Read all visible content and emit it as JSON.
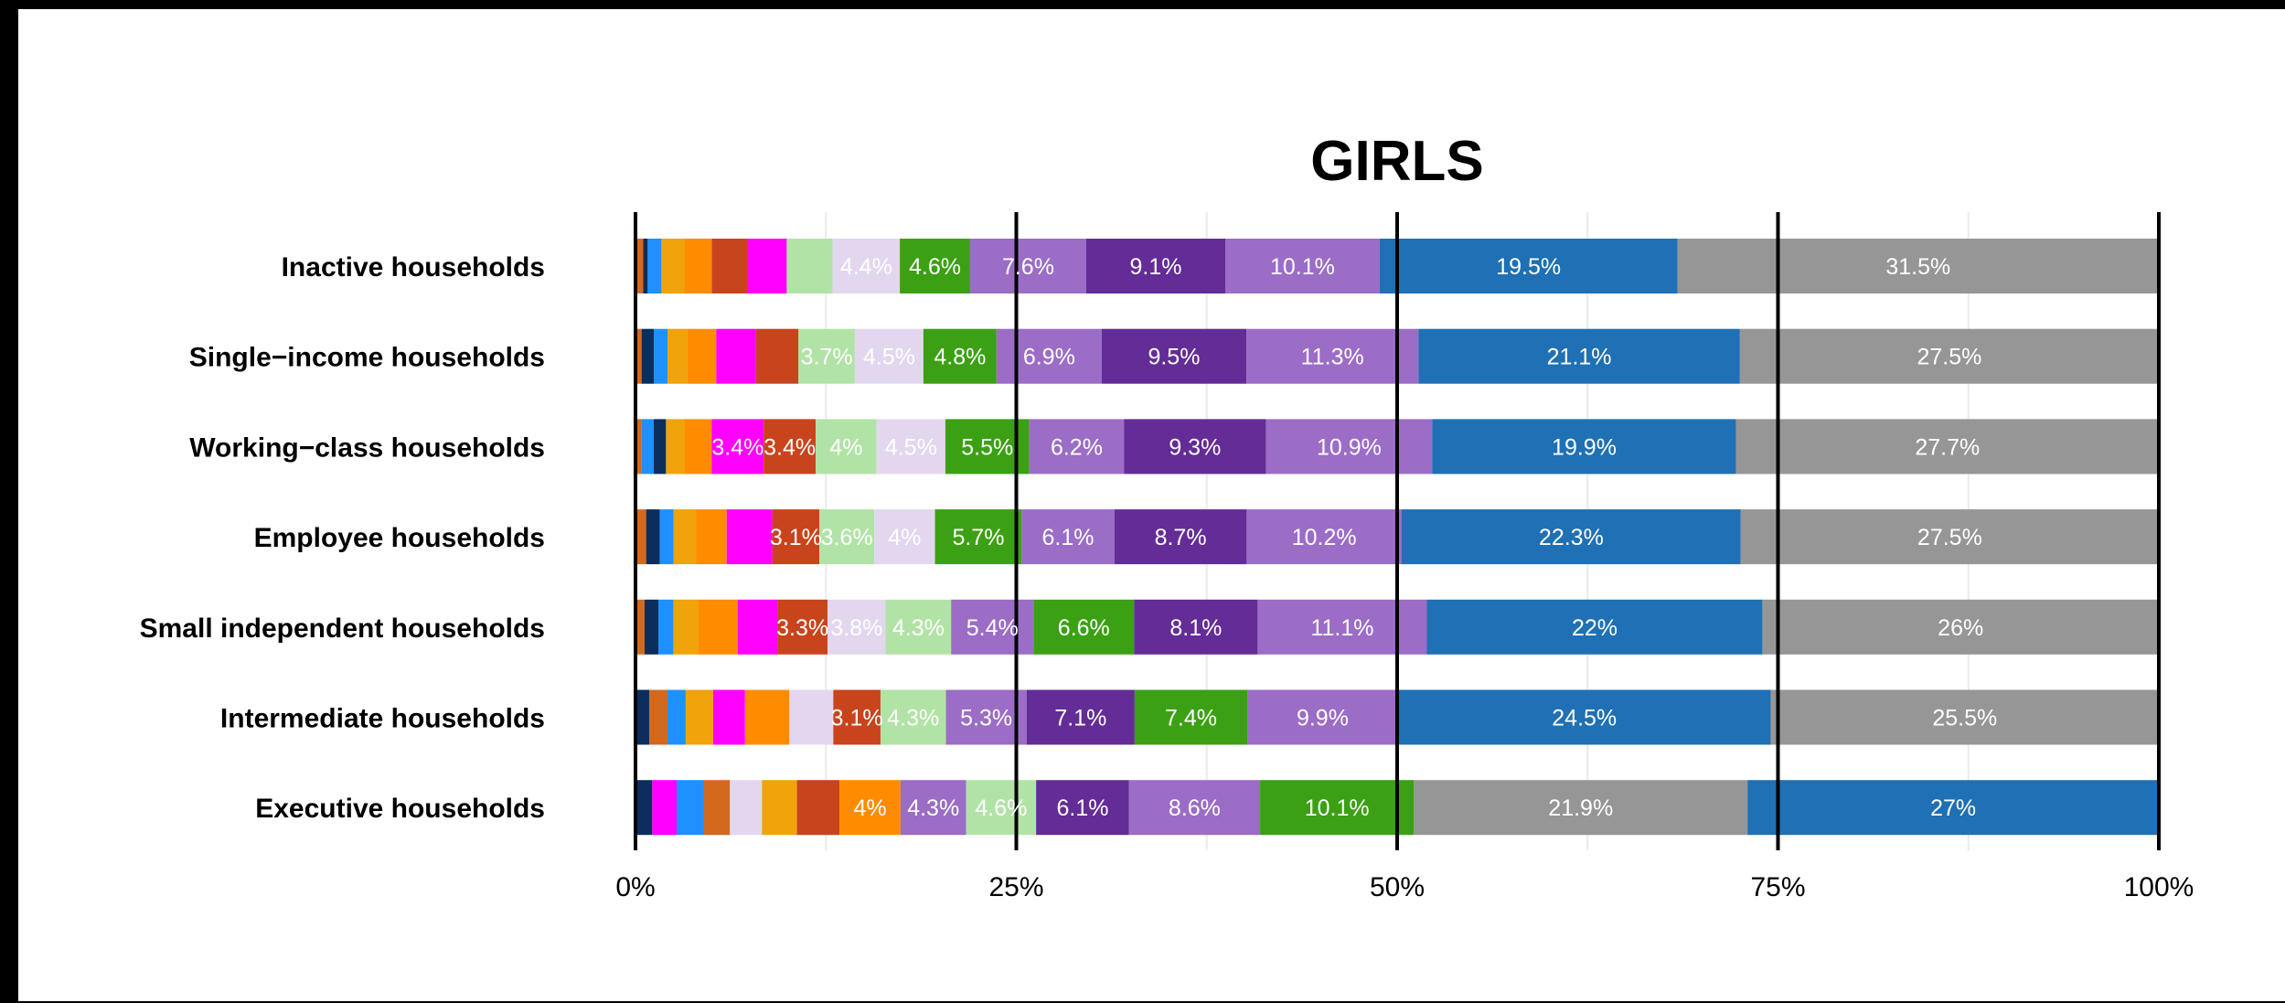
{
  "chart_data": {
    "type": "bar",
    "orientation": "horizontal",
    "stacked": "percent",
    "title": "GIRLS",
    "xlim": [
      0,
      100
    ],
    "x_ticks": [
      "0%",
      "25%",
      "50%",
      "75%",
      "100%"
    ],
    "grid": true,
    "legend": "none",
    "categories": [
      "Inactive households",
      "Single−income households",
      "Working−class households",
      "Employee households",
      "Small independent households",
      "Intermediate households",
      "Executive households"
    ],
    "rows": [
      {
        "segments": [
          {
            "v": 0.5,
            "c": "#D2691E"
          },
          {
            "v": 0.3,
            "c": "#0B2E5E"
          },
          {
            "v": 0.9,
            "c": "#1E90FF"
          },
          {
            "v": 1.5,
            "c": "#F0A30A"
          },
          {
            "v": 1.8,
            "c": "#FF8C00"
          },
          {
            "v": 2.3,
            "c": "#C8441C"
          },
          {
            "v": 2.6,
            "c": "#FF00FF"
          },
          {
            "v": 3.0,
            "c": "#B2E3A6"
          },
          {
            "v": 4.4,
            "c": "#E3D7F0",
            "label": "4.4%"
          },
          {
            "v": 4.6,
            "c": "#3CA014",
            "label": "4.6%"
          },
          {
            "v": 7.6,
            "c": "#9B6DC6",
            "label": "7.6%"
          },
          {
            "v": 9.1,
            "c": "#642C96",
            "label": "9.1%"
          },
          {
            "v": 10.1,
            "c": "#9B6DC6",
            "label": "10.1%"
          },
          {
            "v": 19.5,
            "c": "#1F70B4",
            "label": "19.5%"
          },
          {
            "v": 31.5,
            "c": "#969696",
            "label": "31.5%"
          }
        ]
      },
      {
        "segments": [
          {
            "v": 0.4,
            "c": "#D2691E"
          },
          {
            "v": 0.8,
            "c": "#0B2E5E"
          },
          {
            "v": 0.9,
            "c": "#1E90FF"
          },
          {
            "v": 1.3,
            "c": "#F0A30A"
          },
          {
            "v": 1.9,
            "c": "#FF8C00"
          },
          {
            "v": 2.6,
            "c": "#FF00FF"
          },
          {
            "v": 2.8,
            "c": "#C8441C"
          },
          {
            "v": 3.7,
            "c": "#B2E3A6",
            "label": "3.7%"
          },
          {
            "v": 4.5,
            "c": "#E3D7F0",
            "label": "4.5%"
          },
          {
            "v": 4.8,
            "c": "#3CA014",
            "label": "4.8%"
          },
          {
            "v": 6.9,
            "c": "#9B6DC6",
            "label": "6.9%"
          },
          {
            "v": 9.5,
            "c": "#642C96",
            "label": "9.5%"
          },
          {
            "v": 11.3,
            "c": "#9B6DC6",
            "label": "11.3%"
          },
          {
            "v": 21.1,
            "c": "#1F70B4",
            "label": "21.1%"
          },
          {
            "v": 27.5,
            "c": "#969696",
            "label": "27.5%"
          }
        ]
      },
      {
        "segments": [
          {
            "v": 0.4,
            "c": "#D2691E"
          },
          {
            "v": 0.8,
            "c": "#1E90FF"
          },
          {
            "v": 0.8,
            "c": "#0B2E5E"
          },
          {
            "v": 1.2,
            "c": "#F0A30A"
          },
          {
            "v": 1.8,
            "c": "#FF8C00"
          },
          {
            "v": 3.4,
            "c": "#FF00FF",
            "label": "3.4%"
          },
          {
            "v": 3.4,
            "c": "#C8441C",
            "label": "3.4%"
          },
          {
            "v": 4.0,
            "c": "#B2E3A6",
            "label": "4%"
          },
          {
            "v": 4.5,
            "c": "#E3D7F0",
            "label": "4.5%"
          },
          {
            "v": 5.5,
            "c": "#3CA014",
            "label": "5.5%"
          },
          {
            "v": 6.2,
            "c": "#9B6DC6",
            "label": "6.2%"
          },
          {
            "v": 9.3,
            "c": "#642C96",
            "label": "9.3%"
          },
          {
            "v": 10.9,
            "c": "#9B6DC6",
            "label": "10.9%"
          },
          {
            "v": 19.9,
            "c": "#1F70B4",
            "label": "19.9%"
          },
          {
            "v": 27.7,
            "c": "#969696",
            "label": "27.7%"
          }
        ]
      },
      {
        "segments": [
          {
            "v": 0.7,
            "c": "#D2691E"
          },
          {
            "v": 0.9,
            "c": "#0B2E5E"
          },
          {
            "v": 0.9,
            "c": "#1E90FF"
          },
          {
            "v": 1.5,
            "c": "#F0A30A"
          },
          {
            "v": 2.0,
            "c": "#FF8C00"
          },
          {
            "v": 3.0,
            "c": "#FF00FF"
          },
          {
            "v": 3.1,
            "c": "#C8441C",
            "label": "3.1%"
          },
          {
            "v": 3.6,
            "c": "#B2E3A6",
            "label": "3.6%"
          },
          {
            "v": 4.0,
            "c": "#E3D7F0",
            "label": "4%"
          },
          {
            "v": 5.7,
            "c": "#3CA014",
            "label": "5.7%"
          },
          {
            "v": 6.1,
            "c": "#9B6DC6",
            "label": "6.1%"
          },
          {
            "v": 8.7,
            "c": "#642C96",
            "label": "8.7%"
          },
          {
            "v": 10.2,
            "c": "#9B6DC6",
            "label": "10.2%"
          },
          {
            "v": 22.3,
            "c": "#1F70B4",
            "label": "22.3%"
          },
          {
            "v": 27.5,
            "c": "#969696",
            "label": "27.5%"
          }
        ]
      },
      {
        "segments": [
          {
            "v": 0.6,
            "c": "#D2691E"
          },
          {
            "v": 0.9,
            "c": "#0B2E5E"
          },
          {
            "v": 1.0,
            "c": "#1E90FF"
          },
          {
            "v": 1.6,
            "c": "#F0A30A"
          },
          {
            "v": 2.6,
            "c": "#FF8C00"
          },
          {
            "v": 2.6,
            "c": "#FF00FF"
          },
          {
            "v": 3.3,
            "c": "#C8441C",
            "label": "3.3%"
          },
          {
            "v": 3.8,
            "c": "#E3D7F0",
            "label": "3.8%"
          },
          {
            "v": 4.3,
            "c": "#B2E3A6",
            "label": "4.3%"
          },
          {
            "v": 5.4,
            "c": "#9B6DC6",
            "label": "5.4%"
          },
          {
            "v": 6.6,
            "c": "#3CA014",
            "label": "6.6%"
          },
          {
            "v": 8.1,
            "c": "#642C96",
            "label": "8.1%"
          },
          {
            "v": 11.1,
            "c": "#9B6DC6",
            "label": "11.1%"
          },
          {
            "v": 22.0,
            "c": "#1F70B4",
            "label": "22%"
          },
          {
            "v": 26.0,
            "c": "#969696",
            "label": "26%"
          }
        ]
      },
      {
        "segments": [
          {
            "v": 0.9,
            "c": "#0B2E5E"
          },
          {
            "v": 1.2,
            "c": "#D2691E"
          },
          {
            "v": 1.2,
            "c": "#1E90FF"
          },
          {
            "v": 1.8,
            "c": "#F0A30A"
          },
          {
            "v": 2.1,
            "c": "#FF00FF"
          },
          {
            "v": 2.9,
            "c": "#FF8C00"
          },
          {
            "v": 2.9,
            "c": "#E3D7F0"
          },
          {
            "v": 3.1,
            "c": "#C8441C",
            "label": "3.1%"
          },
          {
            "v": 4.3,
            "c": "#B2E3A6",
            "label": "4.3%"
          },
          {
            "v": 5.3,
            "c": "#9B6DC6",
            "label": "5.3%"
          },
          {
            "v": 7.1,
            "c": "#642C96",
            "label": "7.1%"
          },
          {
            "v": 7.4,
            "c": "#3CA014",
            "label": "7.4%"
          },
          {
            "v": 9.9,
            "c": "#9B6DC6",
            "label": "9.9%"
          },
          {
            "v": 24.5,
            "c": "#1F70B4",
            "label": "24.5%"
          },
          {
            "v": 25.5,
            "c": "#969696",
            "label": "25.5%"
          }
        ]
      },
      {
        "segments": [
          {
            "v": 1.1,
            "c": "#0B2E5E"
          },
          {
            "v": 1.6,
            "c": "#FF00FF"
          },
          {
            "v": 1.8,
            "c": "#1E90FF"
          },
          {
            "v": 1.7,
            "c": "#D2691E"
          },
          {
            "v": 2.1,
            "c": "#E3D7F0"
          },
          {
            "v": 2.3,
            "c": "#F0A30A"
          },
          {
            "v": 2.8,
            "c": "#C8441C"
          },
          {
            "v": 4.0,
            "c": "#FF8C00",
            "label": "4%"
          },
          {
            "v": 4.3,
            "c": "#9B6DC6",
            "label": "4.3%"
          },
          {
            "v": 4.6,
            "c": "#B2E3A6",
            "label": "4.6%"
          },
          {
            "v": 6.1,
            "c": "#642C96",
            "label": "6.1%"
          },
          {
            "v": 8.6,
            "c": "#9B6DC6",
            "label": "8.6%"
          },
          {
            "v": 10.1,
            "c": "#3CA014",
            "label": "10.1%"
          },
          {
            "v": 21.9,
            "c": "#969696",
            "label": "21.9%"
          },
          {
            "v": 27.0,
            "c": "#1F70B4",
            "label": "27%"
          }
        ]
      }
    ]
  }
}
